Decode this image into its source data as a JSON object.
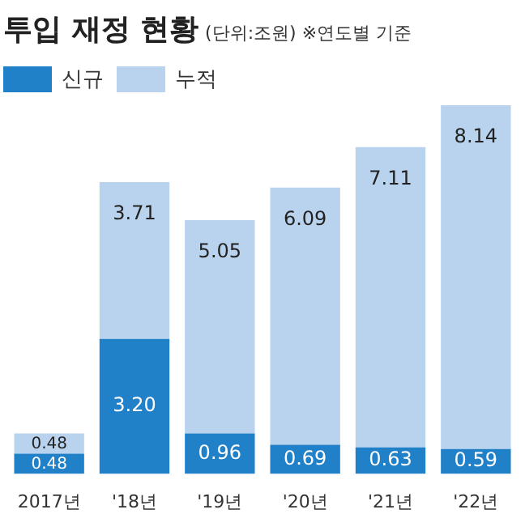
{
  "chart_data": {
    "type": "bar",
    "title": "투입 재정 현황",
    "subtitle": "(단위:조원)  ※연도별 기준",
    "categories": [
      "2017년",
      "'18년",
      "'19년",
      "'20년",
      "'21년",
      "'22년"
    ],
    "stacked": true,
    "legend": "top left",
    "series": [
      {
        "name": "신규",
        "color": "#2080c8",
        "values": [
          0.48,
          3.2,
          0.96,
          0.69,
          0.63,
          0.59
        ],
        "value_labels": [
          "0.48",
          "3.20",
          "0.96",
          "0.69",
          "0.63",
          "0.59"
        ]
      },
      {
        "name": "누적",
        "color": "#b9d3ee",
        "values": [
          0.48,
          3.71,
          5.05,
          6.09,
          7.11,
          8.14
        ],
        "value_labels": [
          "0.48",
          "3.71",
          "5.05",
          "6.09",
          "7.11",
          "8.14"
        ]
      }
    ]
  }
}
